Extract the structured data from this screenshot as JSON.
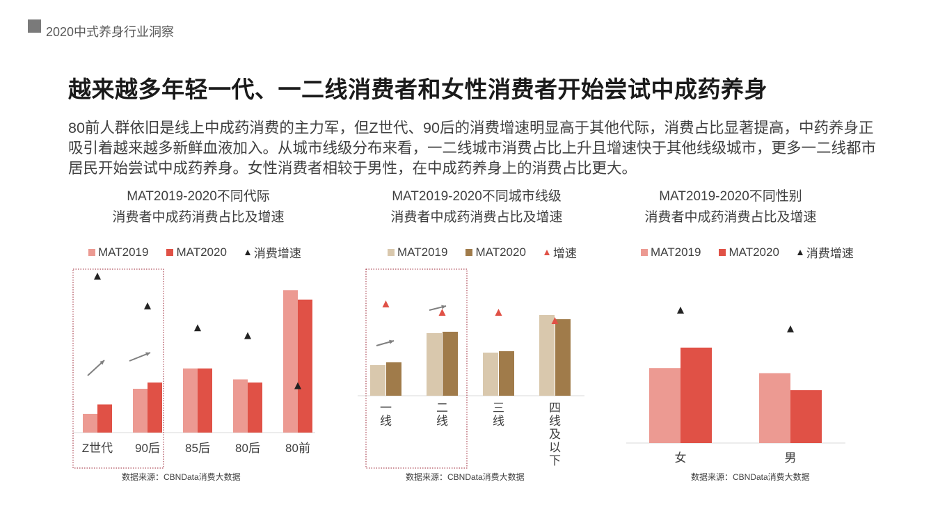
{
  "header": {
    "title": "2020中式养身行业洞察"
  },
  "main_title": "越来越多年轻一代、一二线消费者和女性消费者开始尝试中成药养身",
  "description": "80前人群依旧是线上中成药消费的主力军，但Z世代、90后的消费增速明显高于其他代际，消费占比显著提高，中药养身正吸引着越来越多新鲜血液加入。从城市线级分布来看，一二线城市消费占比上升且增速快于其他线级城市，更多一二线都市居民开始尝试中成药养身。女性消费者相较于男性，在中成药养身上的消费占比更大。",
  "colors": {
    "light_red": "#ec9a92",
    "red": "#e05146",
    "light_brown": "#d9c8ad",
    "brown": "#a07b4a",
    "triangle_dark": "#222222",
    "triangle_red": "#e05146",
    "arrow": "#7f7f7f",
    "frame": "#9b2030"
  },
  "chart_data": [
    {
      "type": "bar",
      "title_line1": "MAT2019-2020不同代际",
      "title_line2": "消费者中成药消费占比及增速",
      "legend": [
        "MAT2019",
        "MAT2020",
        "消费增速"
      ],
      "categories": [
        "Z世代",
        "90后",
        "85后",
        "80后",
        "80前"
      ],
      "series": [
        {
          "name": "MAT2019",
          "values": [
            12,
            28,
            41,
            34,
            91
          ]
        },
        {
          "name": "MAT2020",
          "values": [
            18,
            32,
            41,
            32,
            85
          ]
        }
      ],
      "growth": [
        100,
        81,
        67,
        62,
        30
      ],
      "growth_color": "triangle_dark",
      "colors": [
        "light_red",
        "red"
      ],
      "ylim": [
        0,
        100
      ],
      "highlight": [
        0,
        1
      ],
      "source": "数据来源：CBNData消费大数据"
    },
    {
      "type": "bar",
      "title_line1": "MAT2019-2020不同城市线级",
      "title_line2": "消费者中成药消费占比及增速",
      "legend": [
        "MAT2019",
        "MAT2020",
        "增速"
      ],
      "categories": [
        "一线",
        "二线",
        "三线",
        "四线及以下"
      ],
      "series": [
        {
          "name": "MAT2019",
          "values": [
            22,
            45,
            31,
            58
          ]
        },
        {
          "name": "MAT2020",
          "values": [
            24,
            46,
            32,
            55
          ]
        }
      ],
      "growth": [
        66,
        60,
        60,
        54
      ],
      "growth_color": "triangle_red",
      "colors": [
        "light_brown",
        "brown"
      ],
      "ylim": [
        0,
        80
      ],
      "highlight": [
        0,
        1
      ],
      "source": "数据来源：CBNData消费大数据"
    },
    {
      "type": "bar",
      "title_line1": "MAT2019-2020不同性别",
      "title_line2": "消费者中成药消费占比及增速",
      "legend": [
        "MAT2019",
        "MAT2020",
        "消费增速"
      ],
      "categories": [
        "女",
        "男"
      ],
      "series": [
        {
          "name": "MAT2019",
          "values": [
            44,
            41
          ]
        },
        {
          "name": "MAT2020",
          "values": [
            56,
            31
          ]
        }
      ],
      "growth": [
        78,
        67
      ],
      "growth_color": "triangle_dark",
      "colors": [
        "light_red",
        "red"
      ],
      "ylim": [
        0,
        100
      ],
      "highlight": [],
      "source": "数据来源：CBNData消费大数据"
    }
  ]
}
